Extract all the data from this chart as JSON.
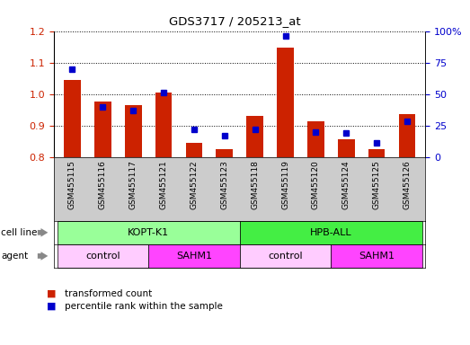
{
  "title": "GDS3717 / 205213_at",
  "samples": [
    "GSM455115",
    "GSM455116",
    "GSM455117",
    "GSM455121",
    "GSM455122",
    "GSM455123",
    "GSM455118",
    "GSM455119",
    "GSM455120",
    "GSM455124",
    "GSM455125",
    "GSM455126"
  ],
  "red_values": [
    1.045,
    0.975,
    0.965,
    1.005,
    0.845,
    0.825,
    0.93,
    1.148,
    0.913,
    0.855,
    0.825,
    0.935
  ],
  "blue_values_pct": [
    70,
    40,
    37,
    51,
    22,
    17,
    22,
    96,
    20,
    19,
    11,
    28
  ],
  "ylim_left": [
    0.8,
    1.2
  ],
  "ylim_right": [
    0,
    100
  ],
  "yticks_left": [
    0.8,
    0.9,
    1.0,
    1.1,
    1.2
  ],
  "yticks_right": [
    0,
    25,
    50,
    75,
    100
  ],
  "ytick_labels_right": [
    "0",
    "25",
    "50",
    "75",
    "100%"
  ],
  "red_color": "#cc2200",
  "blue_color": "#0000cc",
  "xtick_bg_color": "#cccccc",
  "cell_line_groups": [
    {
      "label": "KOPT-K1",
      "start": 0,
      "end": 6,
      "color": "#99ff99"
    },
    {
      "label": "HPB-ALL",
      "start": 6,
      "end": 12,
      "color": "#44ee44"
    }
  ],
  "agent_groups": [
    {
      "label": "control",
      "start": 0,
      "end": 3,
      "color": "#ffccff"
    },
    {
      "label": "SAHM1",
      "start": 3,
      "end": 6,
      "color": "#ff44ff"
    },
    {
      "label": "control",
      "start": 6,
      "end": 9,
      "color": "#ffccff"
    },
    {
      "label": "SAHM1",
      "start": 9,
      "end": 12,
      "color": "#ff44ff"
    }
  ],
  "legend_items": [
    {
      "label": "transformed count",
      "color": "#cc2200"
    },
    {
      "label": "percentile rank within the sample",
      "color": "#0000cc"
    }
  ],
  "bar_width": 0.55
}
